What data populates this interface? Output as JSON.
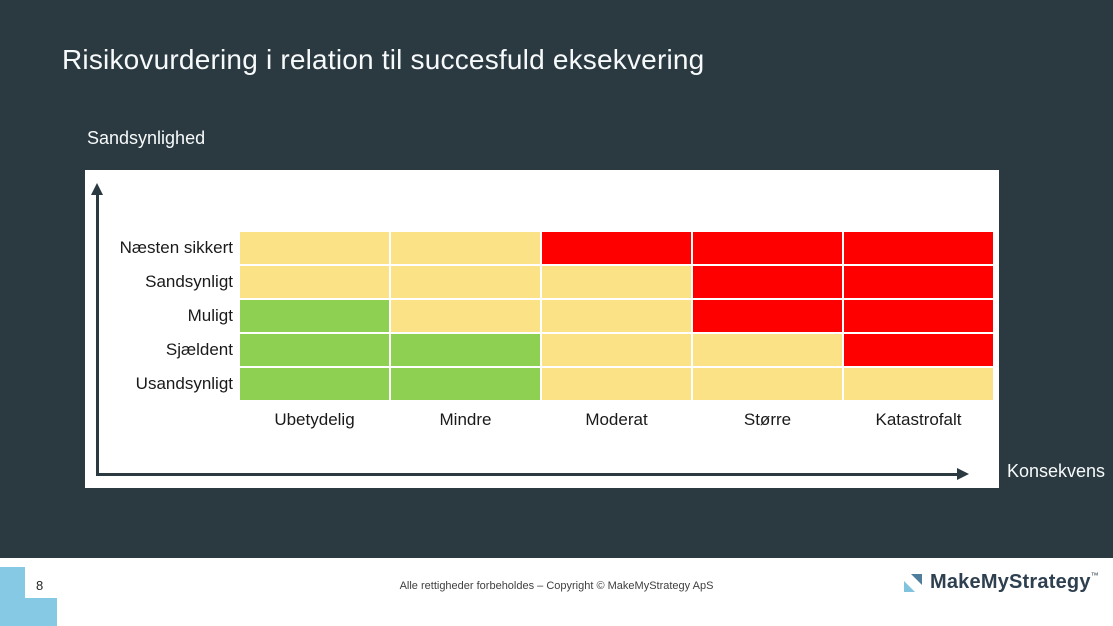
{
  "slide": {
    "title": "Risikovurdering i relation til succesfuld eksekvering",
    "page_number": "8",
    "footer_text": "Alle rettigheder forbeholdes – Copyright © MakeMyStrategy ApS",
    "brand": {
      "name": "MakeMyStrategy",
      "trademark": "™"
    },
    "palette": {
      "background": "#2B3941",
      "chart_background": "#FFFFFF",
      "title_text": "#F7FAFB",
      "corner_logo_blue": "#85C9E4",
      "brand_text": "#2E3F4F",
      "brand_icon_dark": "#4E7E9B",
      "brand_icon_light": "#7FC3DF"
    }
  },
  "chart_data": {
    "type": "heatmap",
    "title": "Risikovurdering i relation til succesfuld eksekvering",
    "ylabel": "Sandsynlighed",
    "xlabel": "Konsekvens",
    "y_categories": [
      "Næsten sikkert",
      "Sandsynligt",
      "Muligt",
      "Sjældent",
      "Usandsynligt"
    ],
    "x_categories": [
      "Ubetydelig",
      "Mindre",
      "Moderat",
      "Større",
      "Katastrofalt"
    ],
    "values": [
      [
        "yellow",
        "yellow",
        "red",
        "red",
        "red"
      ],
      [
        "yellow",
        "yellow",
        "yellow",
        "red",
        "red"
      ],
      [
        "green",
        "yellow",
        "yellow",
        "red",
        "red"
      ],
      [
        "green",
        "green",
        "yellow",
        "yellow",
        "red"
      ],
      [
        "green",
        "green",
        "yellow",
        "yellow",
        "yellow"
      ]
    ],
    "colors": {
      "green": "#8ED052",
      "yellow": "#FBE287",
      "red": "#FF0000"
    },
    "layout": {
      "grid_gap": "white 2px gaps",
      "legend": "none",
      "axes": "arrow up (probability), arrow right (consequence)"
    }
  }
}
